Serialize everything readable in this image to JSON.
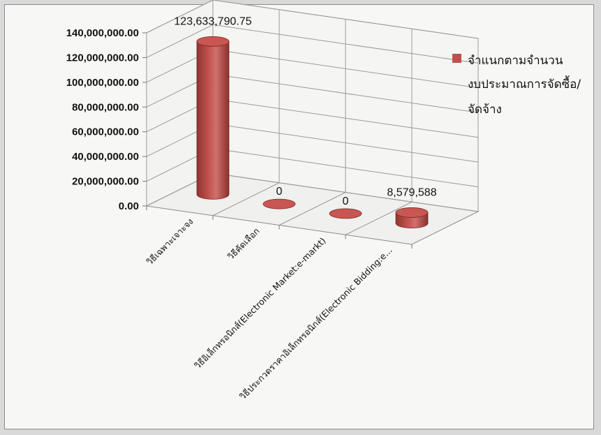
{
  "chart_data": {
    "type": "bar",
    "bar_style": "3d-cylinder",
    "categories": [
      "วิธีเฉพาะเจาะจง",
      "วิธีคัดเลือก",
      "วิธีอิเล็กทรอนิกส์(Electronic Market:e-markt)",
      "วิธีประกวดราคาอิเล็กทรอนิกส์(Electronic  Bidding:e..."
    ],
    "series": [
      {
        "name": "จำแนกตามจำนวนงบประมาณการจัดซื้อ/จัดจ้าง",
        "values": [
          123633790.75,
          0,
          0,
          8579588
        ],
        "data_labels": [
          "123,633,790.75",
          "0",
          "0",
          "8,579,588"
        ],
        "color": "#c0504d"
      }
    ],
    "yticks": [
      "0.00",
      "20,000,000.00",
      "40,000,000.00",
      "60,000,000.00",
      "80,000,000.00",
      "100,000,000.00",
      "120,000,000.00",
      "140,000,000.00"
    ],
    "ylim": [
      0,
      140000000
    ],
    "grid": true,
    "legend": {
      "position": "right",
      "lines": [
        "จำแนกตามจำนวน",
        "งบประมาณการจัดซื้อ/",
        "จัดจ้าง"
      ]
    },
    "title": "",
    "xlabel": "",
    "ylabel": ""
  }
}
